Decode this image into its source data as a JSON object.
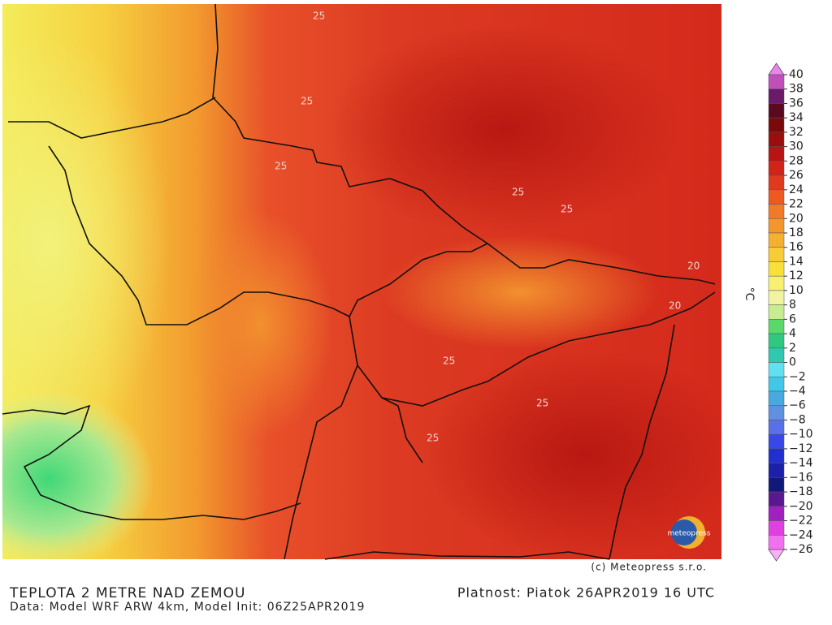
{
  "map": {
    "title": "TEPLOTA 2 METRE NAD ZEMOU",
    "subtitle": "Data: Model WRF ARW 4km, Model Init: 06Z25APR2019",
    "valid": "Platnost: Piatok 26APR2019 16 UTC",
    "copyright": "(c) Meteopress s.r.o.",
    "logo": "meteopress",
    "contour_labels": [
      "25",
      "25",
      "25",
      "25",
      "20",
      "25",
      "25",
      "25",
      "20",
      "25"
    ]
  },
  "colorbar": {
    "unit": "°C",
    "levels": [
      40,
      38,
      36,
      34,
      32,
      30,
      28,
      26,
      24,
      22,
      20,
      18,
      16,
      14,
      12,
      10,
      8,
      6,
      4,
      2,
      0,
      {
        "value": -2,
        "label": "−2"
      },
      {
        "value": -4,
        "label": "−4"
      },
      {
        "value": -6,
        "label": "−6"
      },
      {
        "value": -8,
        "label": "−8"
      },
      {
        "value": -10,
        "label": "−10"
      },
      {
        "value": -12,
        "label": "−12"
      },
      {
        "value": -14,
        "label": "−14"
      },
      {
        "value": -16,
        "label": "−16"
      },
      {
        "value": -18,
        "label": "−18"
      },
      {
        "value": -20,
        "label": "−20"
      },
      {
        "value": -22,
        "label": "−22"
      },
      {
        "value": -24,
        "label": "−24"
      },
      {
        "value": -26,
        "label": "−26"
      }
    ],
    "colors": [
      "#ee82ee",
      "#c050b8",
      "#6a1a6a",
      "#5a0a1e",
      "#7a0a0a",
      "#9a0e0e",
      "#b81414",
      "#d02418",
      "#e03a1e",
      "#ec5a22",
      "#f07a28",
      "#f4962c",
      "#f6b030",
      "#f8cc34",
      "#f8e038",
      "#f8f070",
      "#f0f4a0",
      "#c8ec90",
      "#5ad86a",
      "#30c880",
      "#30c8b0",
      "#60e0f0",
      "#40c8e8",
      "#48a8e0",
      "#6090e0",
      "#5a70e8",
      "#3848e8",
      "#2030d0",
      "#1a20a8",
      "#101878",
      "#5a1890",
      "#a020c0",
      "#e040e0",
      "#f070f0",
      "#f8b0f8"
    ]
  }
}
